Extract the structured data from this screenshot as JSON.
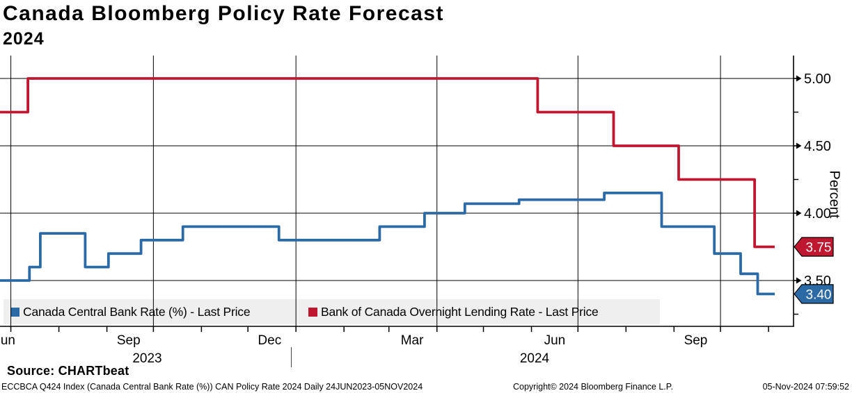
{
  "header": {
    "title": "Canada Bloomberg Policy Rate Forecast",
    "subtitle": "2024"
  },
  "chart_data": {
    "type": "line",
    "title": "Canada Bloomberg Policy Rate Forecast 2024",
    "xlabel": "",
    "ylabel": "Percent",
    "x_start": "2023-06-24",
    "x_end": "2024-11-05",
    "ylim": [
      3.19,
      5.17
    ],
    "grid": true,
    "legend_position": "bottom",
    "y_ticks": {
      "major": [
        5.0,
        4.5,
        4.0,
        3.5
      ],
      "minor": [
        4.75,
        4.25,
        3.75,
        3.25
      ]
    },
    "x_axis": {
      "month_labels": [
        {
          "label": "Jun",
          "date": "2023-06-27"
        },
        {
          "label": "Sep",
          "date": "2023-09-15"
        },
        {
          "label": "Dec",
          "date": "2023-12-15"
        },
        {
          "label": "Mar",
          "date": "2024-03-16"
        },
        {
          "label": "Jun",
          "date": "2024-06-16"
        },
        {
          "label": "Sep",
          "date": "2024-09-15"
        }
      ],
      "year_labels": [
        {
          "label": "2023",
          "date": "2023-09-27"
        },
        {
          "label": "2024",
          "date": "2024-06-03"
        }
      ],
      "year_separator_date": "2023-12-29"
    },
    "series": [
      {
        "name": "Canada Central Bank Rate (%) - Last Price",
        "color": "#2c6aa6",
        "last_price": 3.4,
        "points": [
          [
            "2023-06-24",
            3.5
          ],
          [
            "2023-07-13",
            3.6
          ],
          [
            "2023-07-20",
            3.85
          ],
          [
            "2023-08-18",
            3.6
          ],
          [
            "2023-09-02",
            3.7
          ],
          [
            "2023-09-23",
            3.8
          ],
          [
            "2023-10-20",
            3.9
          ],
          [
            "2023-12-21",
            3.8
          ],
          [
            "2024-02-24",
            3.9
          ],
          [
            "2024-03-24",
            4.0
          ],
          [
            "2024-04-19",
            4.07
          ],
          [
            "2024-05-24",
            4.1
          ],
          [
            "2024-07-18",
            4.15
          ],
          [
            "2024-08-24",
            3.9
          ],
          [
            "2024-09-27",
            3.7
          ],
          [
            "2024-10-14",
            3.55
          ],
          [
            "2024-10-25",
            3.4
          ],
          [
            "2024-11-05",
            3.4
          ]
        ]
      },
      {
        "name": "Bank of Canada Overnight Lending Rate - Last Price",
        "color": "#bf1730",
        "last_price": 3.75,
        "points": [
          [
            "2023-06-24",
            4.75
          ],
          [
            "2023-07-12",
            5.0
          ],
          [
            "2024-06-05",
            4.75
          ],
          [
            "2024-07-24",
            4.5
          ],
          [
            "2024-09-04",
            4.25
          ],
          [
            "2024-10-23",
            3.75
          ],
          [
            "2024-11-05",
            3.75
          ]
        ]
      }
    ]
  },
  "colors": {
    "blue": "#2c6aa6",
    "red": "#bf1730",
    "legend_bg": "#efefef",
    "grid": "#000000"
  },
  "footer": {
    "source": "Source: CHARTbeat",
    "footnote": "ECCBCA Q424 Index (Canada Central Bank Rate (%)) CAN Policy Rate 2024  Daily 24JUN2023-05NOV2024",
    "copyright": "Copyright© 2024 Bloomberg Finance L.P.",
    "timestamp": "05-Nov-2024 07:59:52"
  }
}
